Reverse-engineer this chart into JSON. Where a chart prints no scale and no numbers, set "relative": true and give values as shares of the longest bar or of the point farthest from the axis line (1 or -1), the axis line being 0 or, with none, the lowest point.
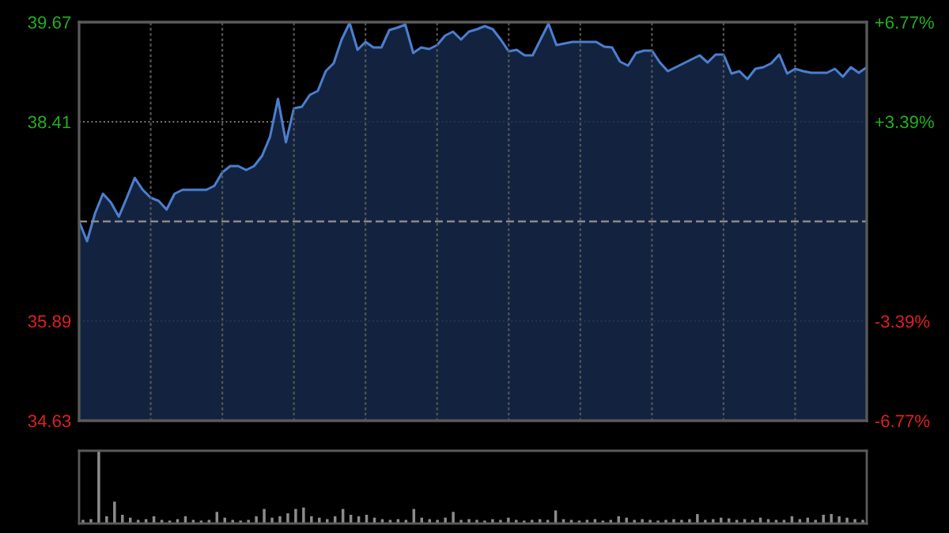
{
  "chart_data": [
    {
      "type": "area",
      "categories": [
        null,
        null,
        null,
        null,
        null,
        null,
        null,
        null,
        null,
        null,
        null,
        null,
        null,
        null,
        null,
        null,
        null,
        null,
        null,
        null,
        null,
        null,
        null,
        null,
        null,
        null,
        null,
        null,
        null,
        null,
        null,
        null,
        null,
        null,
        null,
        null,
        null,
        null,
        null,
        null,
        null,
        null,
        null,
        null,
        null,
        null,
        null,
        null,
        null,
        null,
        null,
        null,
        null,
        null,
        null,
        null,
        null,
        null,
        null,
        null,
        null,
        null,
        null,
        null,
        null,
        null,
        null,
        null,
        null,
        null,
        null,
        null,
        null,
        null,
        null,
        null,
        null,
        null,
        null,
        null,
        null,
        null,
        null,
        null,
        null,
        null,
        null,
        null,
        null,
        null,
        null,
        null,
        null,
        null,
        null,
        null,
        null,
        null,
        null,
        null
      ],
      "series": [
        {
          "color": "#4a7fd0",
          "values": [
            37.15,
            36.9,
            37.25,
            37.5,
            37.39,
            37.21,
            37.45,
            37.7,
            37.55,
            37.45,
            37.41,
            37.3,
            37.5,
            37.55,
            37.55,
            37.55,
            37.55,
            37.6,
            37.77,
            37.85,
            37.85,
            37.8,
            37.85,
            37.98,
            38.22,
            38.7,
            38.15,
            38.58,
            38.6,
            38.75,
            38.8,
            39.05,
            39.15,
            39.45,
            39.66,
            39.32,
            39.42,
            39.35,
            39.35,
            39.57,
            39.6,
            39.64,
            39.28,
            39.35,
            39.33,
            39.38,
            39.5,
            39.55,
            39.45,
            39.55,
            39.58,
            39.62,
            39.58,
            39.45,
            39.3,
            39.32,
            39.25,
            39.25,
            39.45,
            39.65,
            39.38,
            39.4,
            39.42,
            39.42,
            39.42,
            39.42,
            39.36,
            39.35,
            39.17,
            39.12,
            39.28,
            39.31,
            39.31,
            39.16,
            39.05,
            39.1,
            39.15,
            39.2,
            39.25,
            39.16,
            39.26,
            39.26,
            39.02,
            39.05,
            38.95,
            39.08,
            39.1,
            39.15,
            39.26,
            39.02,
            39.08,
            39.05,
            39.03,
            39.03,
            39.03,
            39.08,
            38.98,
            39.1,
            39.03,
            39.1
          ]
        }
      ],
      "ylim": [
        34.63,
        39.67
      ],
      "yticks": [
        34.63,
        35.89,
        38.41,
        39.67
      ],
      "y2lim": [
        -6.77,
        6.77
      ],
      "y2ticks": [
        {
          "value": -6.77,
          "label": "-6.77%"
        },
        {
          "value": -3.39,
          "label": "-3.39%"
        },
        {
          "value": 3.39,
          "label": "+3.39%"
        },
        {
          "value": 6.77,
          "label": "+6.77%"
        }
      ],
      "ref_lines": [
        {
          "axis": "y",
          "value": 37.15,
          "label": null,
          "color": "#8a8a8a",
          "line_style": "dashed"
        }
      ],
      "grid": true
    },
    {
      "type": "bar",
      "relative": true,
      "categories": [
        null,
        null,
        null,
        null,
        null,
        null,
        null,
        null,
        null,
        null,
        null,
        null,
        null,
        null,
        null,
        null,
        null,
        null,
        null,
        null,
        null,
        null,
        null,
        null,
        null,
        null,
        null,
        null,
        null,
        null,
        null,
        null,
        null,
        null,
        null,
        null,
        null,
        null,
        null,
        null,
        null,
        null,
        null,
        null,
        null,
        null,
        null,
        null,
        null,
        null,
        null,
        null,
        null,
        null,
        null,
        null,
        null,
        null,
        null,
        null,
        null,
        null,
        null,
        null,
        null,
        null,
        null,
        null,
        null,
        null,
        null,
        null,
        null,
        null,
        null,
        null,
        null,
        null,
        null,
        null,
        null,
        null,
        null,
        null,
        null,
        null,
        null,
        null,
        null,
        null,
        null,
        null,
        null,
        null,
        null,
        null,
        null,
        null,
        null,
        null
      ],
      "series": [
        {
          "color": "#8c8c8c",
          "values": [
            0.05,
            0.06,
            1.0,
            0.1,
            0.3,
            0.12,
            0.08,
            0.05,
            0.06,
            0.1,
            0.05,
            0.04,
            0.06,
            0.1,
            0.05,
            0.04,
            0.05,
            0.16,
            0.08,
            0.05,
            0.04,
            0.05,
            0.1,
            0.2,
            0.08,
            0.1,
            0.14,
            0.2,
            0.22,
            0.1,
            0.08,
            0.06,
            0.1,
            0.2,
            0.12,
            0.1,
            0.12,
            0.08,
            0.06,
            0.05,
            0.06,
            0.05,
            0.2,
            0.08,
            0.06,
            0.05,
            0.08,
            0.16,
            0.05,
            0.06,
            0.05,
            0.04,
            0.06,
            0.05,
            0.08,
            0.05,
            0.04,
            0.05,
            0.06,
            0.05,
            0.18,
            0.06,
            0.05,
            0.04,
            0.05,
            0.06,
            0.04,
            0.05,
            0.1,
            0.08,
            0.05,
            0.06,
            0.05,
            0.04,
            0.05,
            0.06,
            0.05,
            0.06,
            0.13,
            0.05,
            0.06,
            0.08,
            0.07,
            0.05,
            0.06,
            0.05,
            0.08,
            0.06,
            0.05,
            0.05,
            0.1,
            0.06,
            0.08,
            0.05,
            0.12,
            0.13,
            0.1,
            0.08,
            0.06,
            0.05
          ]
        }
      ]
    }
  ]
}
